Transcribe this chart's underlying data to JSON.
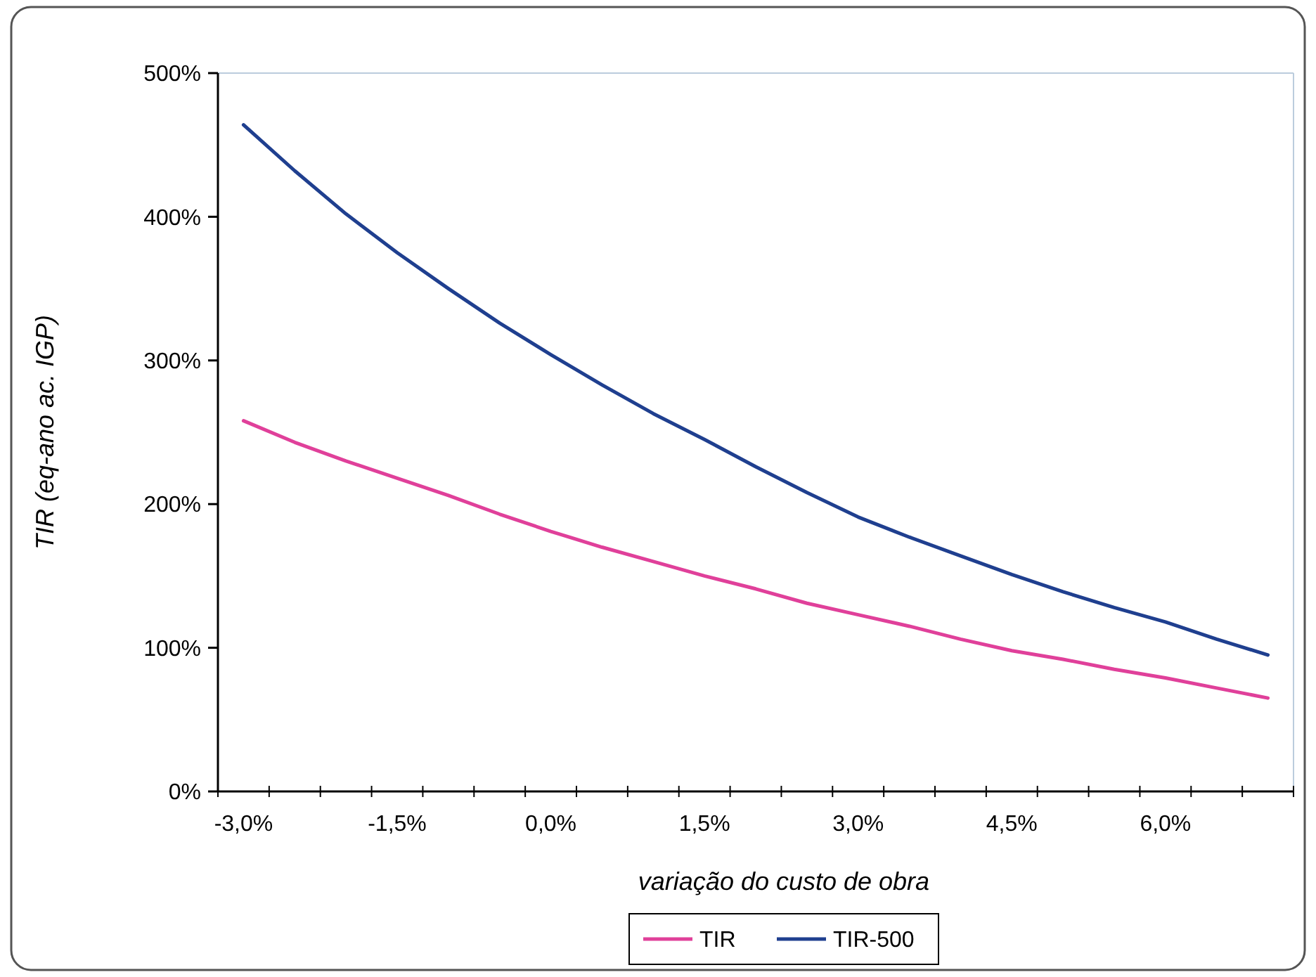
{
  "chart_data": {
    "type": "line",
    "xlabel": "variação do custo de obra",
    "ylabel": "TIR (eq-ano ac. IGP)",
    "categories": [
      "-3,0%",
      null,
      null,
      "-1,5%",
      null,
      null,
      "0,0%",
      null,
      null,
      "1,5%",
      null,
      null,
      "3,0%",
      null,
      null,
      "4,5%",
      null,
      null,
      "6,0%",
      null,
      null
    ],
    "series": [
      {
        "name": "TIR",
        "color": "#e0409a",
        "values": [
          258,
          243,
          230,
          218,
          206,
          193,
          181,
          170,
          160,
          150,
          141,
          131,
          123,
          115,
          106,
          98,
          92,
          85,
          79,
          72,
          65
        ]
      },
      {
        "name": "TIR-500",
        "color": "#1f3f8f",
        "values": [
          464,
          432,
          402,
          375,
          350,
          326,
          304,
          283,
          263,
          245,
          226,
          208,
          191,
          177,
          164,
          151,
          139,
          128,
          118,
          106,
          95
        ]
      }
    ],
    "ylim": [
      0,
      500
    ],
    "yticks": [
      {
        "value": 0,
        "label": "0%"
      },
      {
        "value": 100,
        "label": "100%"
      },
      {
        "value": 200,
        "label": "200%"
      },
      {
        "value": 300,
        "label": "300%"
      },
      {
        "value": 400,
        "label": "400%"
      },
      {
        "value": 500,
        "label": "500%"
      }
    ],
    "grid": false,
    "legend": "bottom",
    "marker": "none",
    "line_style": "solid"
  }
}
